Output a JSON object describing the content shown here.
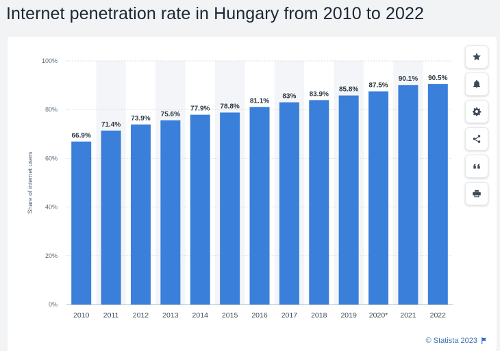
{
  "page": {
    "title": "Internet penetration rate in Hungary from 2010 to 2022",
    "source": "© Statista 2023"
  },
  "toolbar": {
    "buttons": [
      {
        "name": "favorite",
        "icon": "star-icon"
      },
      {
        "name": "notify",
        "icon": "bell-icon"
      },
      {
        "name": "settings",
        "icon": "gear-icon"
      },
      {
        "name": "share",
        "icon": "share-icon"
      },
      {
        "name": "cite",
        "icon": "quote-icon"
      },
      {
        "name": "print",
        "icon": "print-icon"
      }
    ]
  },
  "chart_data": {
    "type": "bar",
    "title": "",
    "xlabel": "",
    "ylabel": "Share of internet users",
    "categories": [
      "2010",
      "2011",
      "2012",
      "2013",
      "2014",
      "2015",
      "2016",
      "2017",
      "2018",
      "2019",
      "2020*",
      "2021",
      "2022"
    ],
    "values": [
      66.9,
      71.4,
      73.9,
      75.6,
      77.9,
      78.8,
      81.1,
      83,
      83.9,
      85.8,
      87.5,
      90.1,
      90.5
    ],
    "data_labels": [
      "66.9%",
      "71.4%",
      "73.9%",
      "75.6%",
      "77.9%",
      "78.8%",
      "81.1%",
      "83%",
      "83.9%",
      "85.8%",
      "87.5%",
      "90.1%",
      "90.5%"
    ],
    "y_ticks": [
      0,
      20,
      40,
      60,
      80,
      100
    ],
    "y_tick_labels": [
      "0%",
      "20%",
      "40%",
      "60%",
      "80%",
      "100%"
    ],
    "ylim": [
      0,
      100
    ],
    "grid": true,
    "bar_color": "#3a7fd9",
    "band_color": "#f3f5f8"
  }
}
